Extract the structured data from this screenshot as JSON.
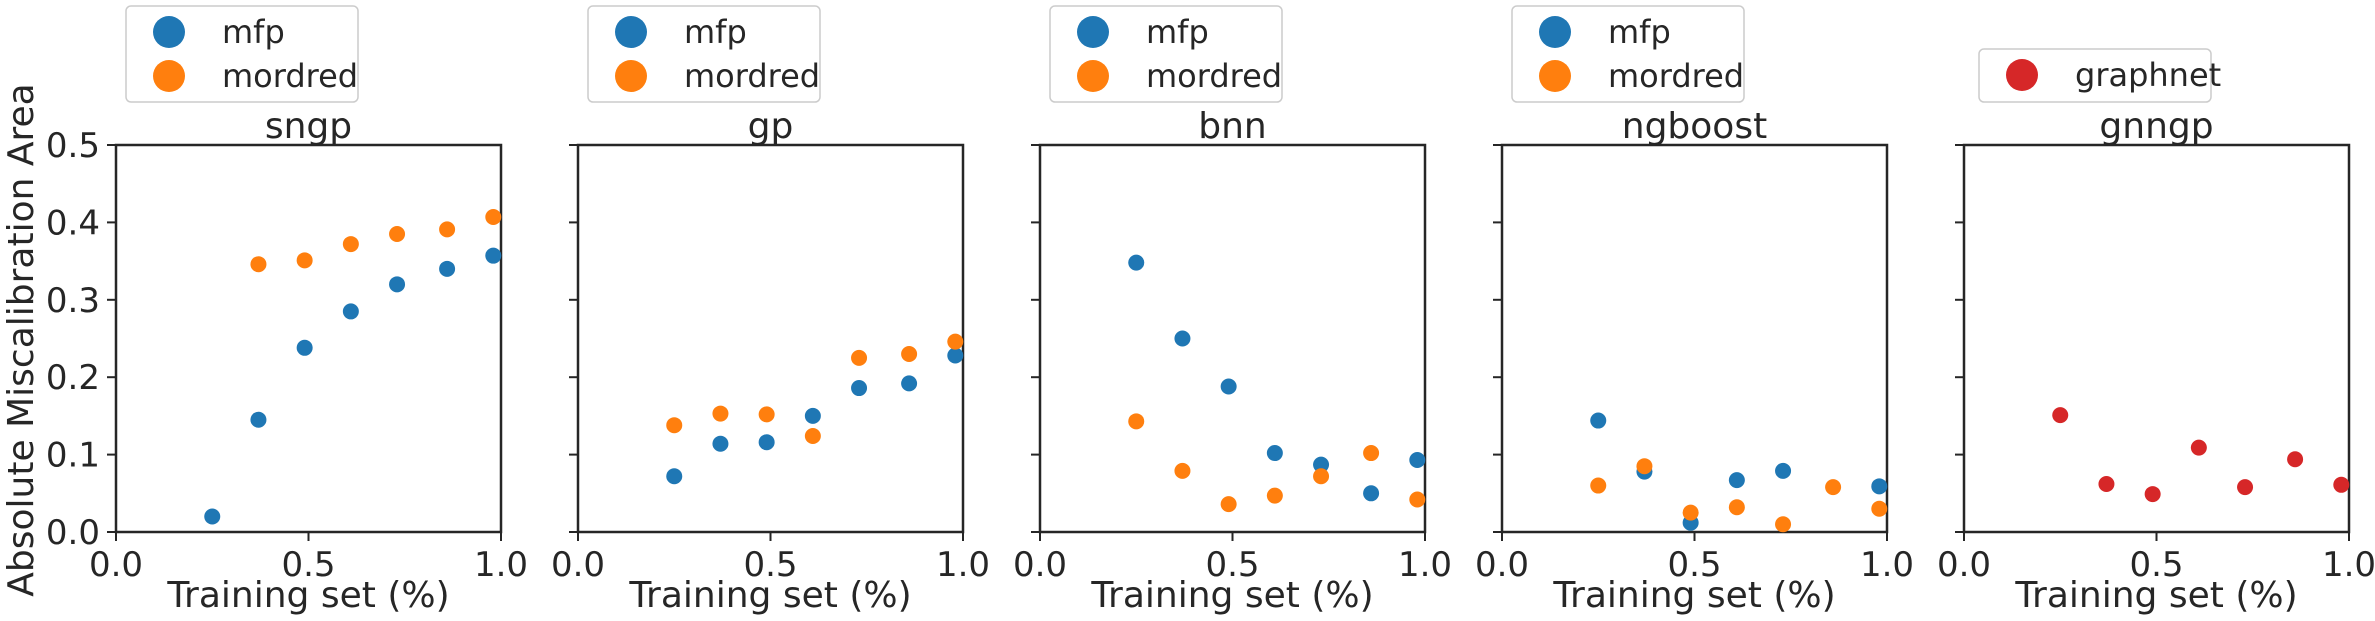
{
  "chart_data": {
    "type": "scatter",
    "ylabel": "Absolute Miscalibration Area",
    "xlabel": "Training set (%)",
    "xlim": [
      0.0,
      1.0
    ],
    "ylim": [
      0.0,
      0.5
    ],
    "xticks": [
      "0.0",
      "0.5",
      "1.0"
    ],
    "yticks": [
      "0.0",
      "0.1",
      "0.2",
      "0.3",
      "0.4",
      "0.5"
    ],
    "colors": {
      "mfp": "#1f77b4",
      "mordred": "#ff7f0e",
      "graphnet": "#d62728"
    },
    "panels": [
      {
        "title": "sngp",
        "series": [
          {
            "name": "mfp",
            "x": [
              0.25,
              0.37,
              0.49,
              0.61,
              0.73,
              0.86,
              0.98
            ],
            "y": [
              0.02,
              0.145,
              0.238,
              0.285,
              0.32,
              0.34,
              0.357
            ]
          },
          {
            "name": "mordred",
            "x": [
              0.37,
              0.49,
              0.61,
              0.73,
              0.86,
              0.98
            ],
            "y": [
              0.346,
              0.351,
              0.372,
              0.385,
              0.391,
              0.407
            ]
          }
        ]
      },
      {
        "title": "gp",
        "series": [
          {
            "name": "mfp",
            "x": [
              0.25,
              0.37,
              0.49,
              0.61,
              0.73,
              0.86,
              0.98
            ],
            "y": [
              0.072,
              0.114,
              0.116,
              0.15,
              0.186,
              0.192,
              0.228
            ]
          },
          {
            "name": "mordred",
            "x": [
              0.25,
              0.37,
              0.49,
              0.61,
              0.73,
              0.86,
              0.98
            ],
            "y": [
              0.138,
              0.153,
              0.152,
              0.124,
              0.225,
              0.23,
              0.246
            ]
          }
        ]
      },
      {
        "title": "bnn",
        "series": [
          {
            "name": "mfp",
            "x": [
              0.25,
              0.37,
              0.49,
              0.61,
              0.73,
              0.86,
              0.98
            ],
            "y": [
              0.348,
              0.25,
              0.188,
              0.102,
              0.087,
              0.05,
              0.093
            ]
          },
          {
            "name": "mordred",
            "x": [
              0.25,
              0.37,
              0.49,
              0.61,
              0.73,
              0.86,
              0.98
            ],
            "y": [
              0.143,
              0.079,
              0.036,
              0.047,
              0.072,
              0.102,
              0.042
            ]
          }
        ]
      },
      {
        "title": "ngboost",
        "series": [
          {
            "name": "mfp",
            "x": [
              0.25,
              0.37,
              0.49,
              0.61,
              0.73,
              0.98
            ],
            "y": [
              0.144,
              0.078,
              0.012,
              0.067,
              0.079,
              0.059
            ]
          },
          {
            "name": "mordred",
            "x": [
              0.25,
              0.37,
              0.49,
              0.61,
              0.73,
              0.86,
              0.98
            ],
            "y": [
              0.06,
              0.085,
              0.025,
              0.032,
              0.01,
              0.058,
              0.03
            ]
          }
        ]
      },
      {
        "title": "gnngp",
        "series": [
          {
            "name": "graphnet",
            "x": [
              0.25,
              0.37,
              0.49,
              0.61,
              0.73,
              0.86,
              0.98
            ],
            "y": [
              0.151,
              0.062,
              0.049,
              0.109,
              0.058,
              0.094,
              0.061
            ]
          }
        ]
      }
    ]
  }
}
